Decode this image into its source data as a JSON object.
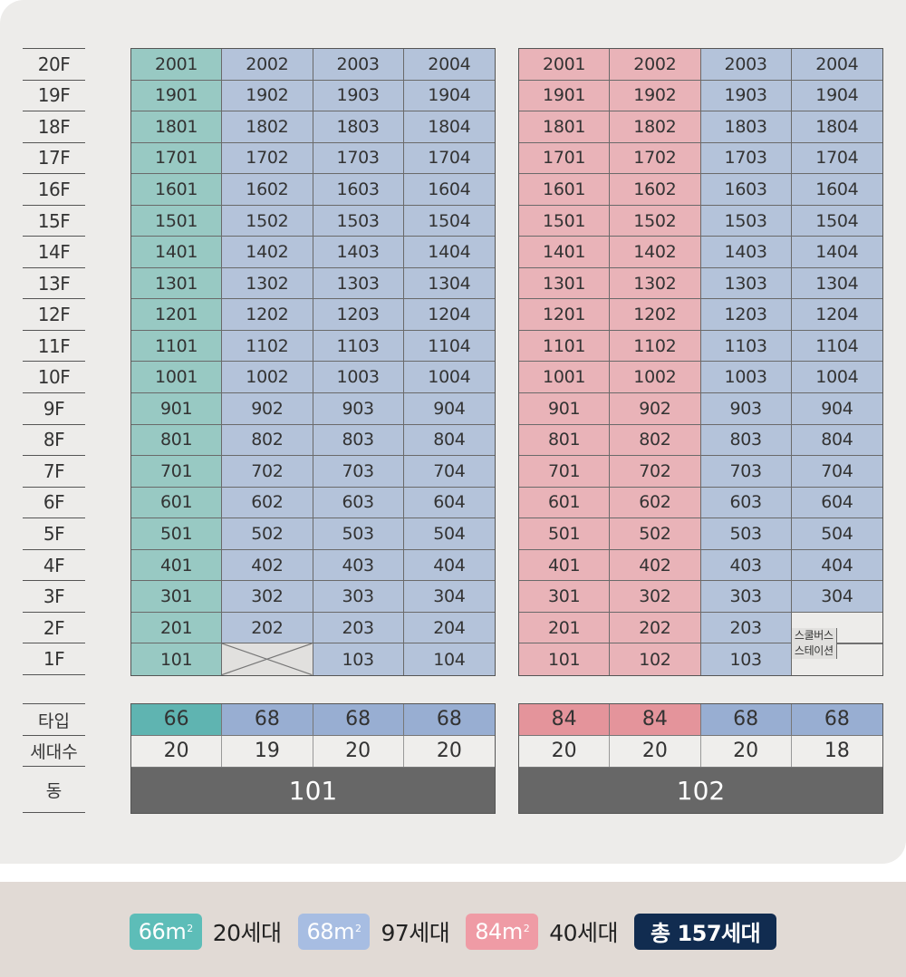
{
  "floors": [
    "20F",
    "19F",
    "18F",
    "17F",
    "16F",
    "15F",
    "14F",
    "13F",
    "12F",
    "11F",
    "10F",
    "9F",
    "8F",
    "7F",
    "6F",
    "5F",
    "4F",
    "3F",
    "2F",
    "1F"
  ],
  "colors": {
    "type66": "#98c9c3",
    "type68": "#b4c3da",
    "type84": "#e9b3b8",
    "empty": "#e1e0de",
    "building_bar": "#676767",
    "legend66": "#5dbdb8",
    "legend68": "#a7bde2",
    "legend84": "#ef9ba5",
    "total_badge": "#112c50"
  },
  "buildings": [
    {
      "name": "101",
      "column_types": [
        "66",
        "68",
        "68",
        "68"
      ],
      "column_counts": [
        "20",
        "19",
        "20",
        "20"
      ],
      "grid": [
        [
          "2001",
          "2002",
          "2003",
          "2004"
        ],
        [
          "1901",
          "1902",
          "1903",
          "1904"
        ],
        [
          "1801",
          "1802",
          "1803",
          "1804"
        ],
        [
          "1701",
          "1702",
          "1703",
          "1704"
        ],
        [
          "1601",
          "1602",
          "1603",
          "1604"
        ],
        [
          "1501",
          "1502",
          "1503",
          "1504"
        ],
        [
          "1401",
          "1402",
          "1403",
          "1404"
        ],
        [
          "1301",
          "1302",
          "1303",
          "1304"
        ],
        [
          "1201",
          "1202",
          "1203",
          "1204"
        ],
        [
          "1101",
          "1102",
          "1103",
          "1104"
        ],
        [
          "1001",
          "1002",
          "1003",
          "1004"
        ],
        [
          "901",
          "902",
          "903",
          "904"
        ],
        [
          "801",
          "802",
          "803",
          "804"
        ],
        [
          "701",
          "702",
          "703",
          "704"
        ],
        [
          "601",
          "602",
          "603",
          "604"
        ],
        [
          "501",
          "502",
          "503",
          "504"
        ],
        [
          "401",
          "402",
          "403",
          "404"
        ],
        [
          "301",
          "302",
          "303",
          "304"
        ],
        [
          "201",
          "202",
          "203",
          "204"
        ],
        [
          "101",
          "",
          "103",
          "104"
        ]
      ]
    },
    {
      "name": "102",
      "column_types": [
        "84",
        "84",
        "68",
        "68"
      ],
      "column_counts": [
        "20",
        "20",
        "20",
        "18"
      ],
      "grid": [
        [
          "2001",
          "2002",
          "2003",
          "2004"
        ],
        [
          "1901",
          "1902",
          "1903",
          "1904"
        ],
        [
          "1801",
          "1802",
          "1803",
          "1804"
        ],
        [
          "1701",
          "1702",
          "1703",
          "1704"
        ],
        [
          "1601",
          "1602",
          "1603",
          "1604"
        ],
        [
          "1501",
          "1502",
          "1503",
          "1504"
        ],
        [
          "1401",
          "1402",
          "1403",
          "1404"
        ],
        [
          "1301",
          "1302",
          "1303",
          "1304"
        ],
        [
          "1201",
          "1202",
          "1203",
          "1204"
        ],
        [
          "1101",
          "1102",
          "1103",
          "1104"
        ],
        [
          "1001",
          "1002",
          "1003",
          "1004"
        ],
        [
          "901",
          "902",
          "903",
          "904"
        ],
        [
          "801",
          "802",
          "803",
          "804"
        ],
        [
          "701",
          "702",
          "703",
          "704"
        ],
        [
          "601",
          "602",
          "603",
          "604"
        ],
        [
          "501",
          "502",
          "503",
          "504"
        ],
        [
          "401",
          "402",
          "403",
          "404"
        ],
        [
          "301",
          "302",
          "303",
          "304"
        ],
        [
          "201",
          "202",
          "203",
          ""
        ],
        [
          "101",
          "102",
          "103",
          ""
        ]
      ],
      "school_bus_station": [
        "스쿨버스",
        "스테이션"
      ]
    }
  ],
  "summary_labels": {
    "type": "타입",
    "count": "세대수",
    "building": "동"
  },
  "legend": {
    "items": [
      {
        "type": "66",
        "unit": "m",
        "sup": "2",
        "count": "20세대"
      },
      {
        "type": "68",
        "unit": "m",
        "sup": "2",
        "count": "97세대"
      },
      {
        "type": "84",
        "unit": "m",
        "sup": "2",
        "count": "40세대"
      }
    ],
    "total": "총 157세대"
  }
}
